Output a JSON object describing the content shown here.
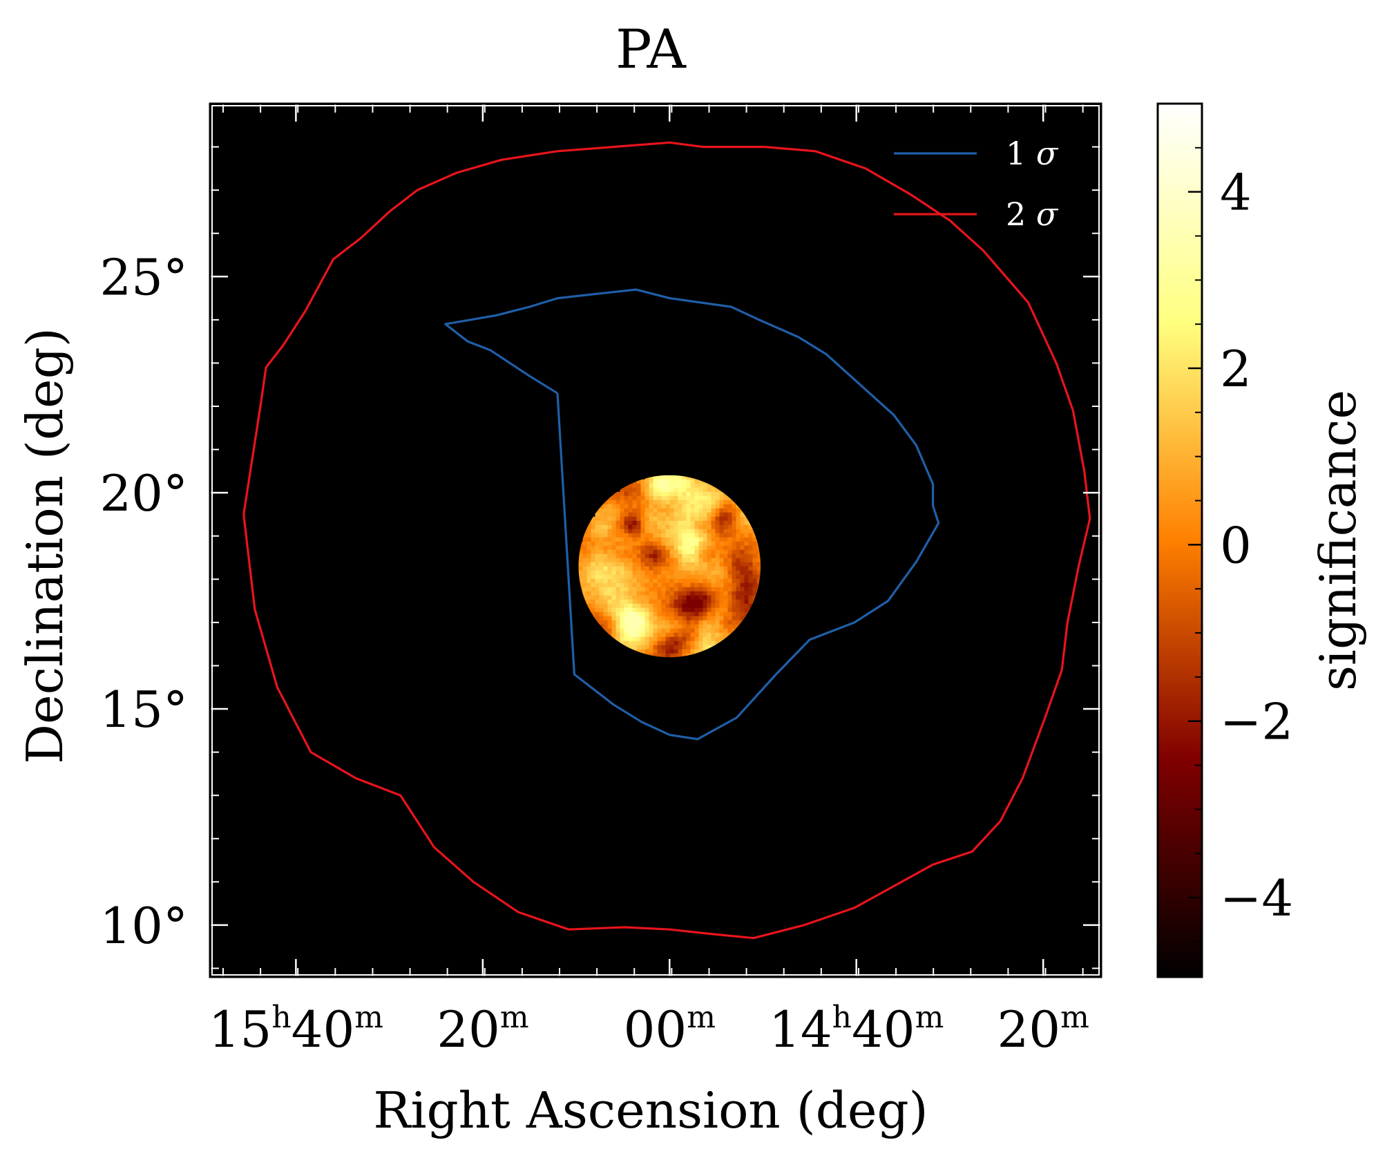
{
  "chart_data": {
    "type": "heatmap",
    "title": "PA",
    "xlabel": "Right Ascension (deg)",
    "ylabel": "Declination (deg)",
    "x_range_hours": [
      15.82,
      14.23
    ],
    "y_range_deg": [
      8.8,
      29.0
    ],
    "x_ticks": [
      {
        "ra_h": 15.6667,
        "main": "15",
        "sup1": "h",
        "mid": "40",
        "sup2": "m"
      },
      {
        "ra_h": 15.3333,
        "main": "",
        "sup1": "",
        "mid": "20",
        "sup2": "m"
      },
      {
        "ra_h": 15.0,
        "main": "",
        "sup1": "",
        "mid": "00",
        "sup2": "m"
      },
      {
        "ra_h": 14.6667,
        "main": "14",
        "sup1": "h",
        "mid": "40",
        "sup2": "m"
      },
      {
        "ra_h": 14.3333,
        "main": "",
        "sup1": "",
        "mid": "20",
        "sup2": "m"
      }
    ],
    "y_ticks": [
      {
        "dec": 10,
        "label": "10°"
      },
      {
        "dec": 15,
        "label": "15°"
      },
      {
        "dec": 20,
        "label": "20°"
      },
      {
        "dec": 25,
        "label": "25°"
      }
    ],
    "background_color": "#000000",
    "colorbar": {
      "label": "significance",
      "range": [
        -4.9,
        5.0
      ],
      "colormap": "afmhot",
      "ticks": [
        {
          "value": 4,
          "label": "4"
        },
        {
          "value": 2,
          "label": "2"
        },
        {
          "value": 0,
          "label": "0"
        },
        {
          "value": -2,
          "label": "−2"
        },
        {
          "value": -4,
          "label": "−4"
        }
      ]
    },
    "significance_map": {
      "center_ra_h": 15.0,
      "center_dec": 18.3,
      "radius_deg": 1.95,
      "typical_range": [
        -2.5,
        3.5
      ]
    },
    "legend": {
      "placement": "top-right",
      "entries": [
        {
          "num": "1",
          "sym": "σ",
          "color": "#1f5fa8"
        },
        {
          "num": "2",
          "sym": "σ",
          "color": "#e8141c"
        }
      ]
    },
    "contours": [
      {
        "name": "1σ",
        "color": "#1f5fa8",
        "ra_h": [
          15.2,
          15.25,
          15.32,
          15.36,
          15.4,
          15.31,
          15.25,
          15.2,
          15.13,
          15.06,
          15.0,
          14.89,
          14.84,
          14.77,
          14.72,
          14.66,
          14.6,
          14.56,
          14.53,
          14.53,
          14.52,
          14.56,
          14.61,
          14.67,
          14.75,
          14.81,
          14.88,
          14.95,
          15.0,
          15.05,
          15.1,
          15.17,
          15.2
        ],
        "dec": [
          22.3,
          22.7,
          23.3,
          23.5,
          23.9,
          24.1,
          24.3,
          24.5,
          24.6,
          24.7,
          24.5,
          24.3,
          24.0,
          23.6,
          23.2,
          22.5,
          21.8,
          21.1,
          20.2,
          19.7,
          19.3,
          18.4,
          17.5,
          17.0,
          16.6,
          15.8,
          14.8,
          14.3,
          14.4,
          14.7,
          15.1,
          15.8,
          22.3
        ]
      },
      {
        "name": "2σ",
        "color": "#e8141c",
        "ra_h": [
          15.76,
          15.73,
          15.72,
          15.69,
          15.65,
          15.6,
          15.55,
          15.5,
          15.45,
          15.38,
          15.3,
          15.2,
          15.1,
          15.0,
          14.94,
          14.83,
          14.74,
          14.65,
          14.57,
          14.5,
          14.44,
          14.36,
          14.31,
          14.28,
          14.26,
          14.25,
          14.27,
          14.29,
          14.3,
          14.33,
          14.37,
          14.41,
          14.46,
          14.53,
          14.6,
          14.67,
          14.76,
          14.85,
          14.93,
          15.0,
          15.08,
          15.18,
          15.27,
          15.35,
          15.42,
          15.48,
          15.56,
          15.64,
          15.7,
          15.74,
          15.76
        ],
        "dec": [
          19.5,
          22.0,
          22.9,
          23.4,
          24.2,
          25.4,
          25.9,
          26.5,
          27.0,
          27.4,
          27.7,
          27.9,
          28.0,
          28.1,
          28.0,
          28.0,
          27.9,
          27.5,
          26.9,
          26.3,
          25.6,
          24.4,
          23.0,
          21.9,
          20.5,
          19.4,
          18.3,
          17.0,
          15.9,
          14.8,
          13.4,
          12.4,
          11.7,
          11.4,
          10.9,
          10.4,
          10.0,
          9.7,
          9.8,
          9.9,
          9.95,
          9.9,
          10.3,
          11.0,
          11.8,
          13.0,
          13.4,
          14.0,
          15.5,
          17.3,
          19.5
        ]
      }
    ]
  }
}
